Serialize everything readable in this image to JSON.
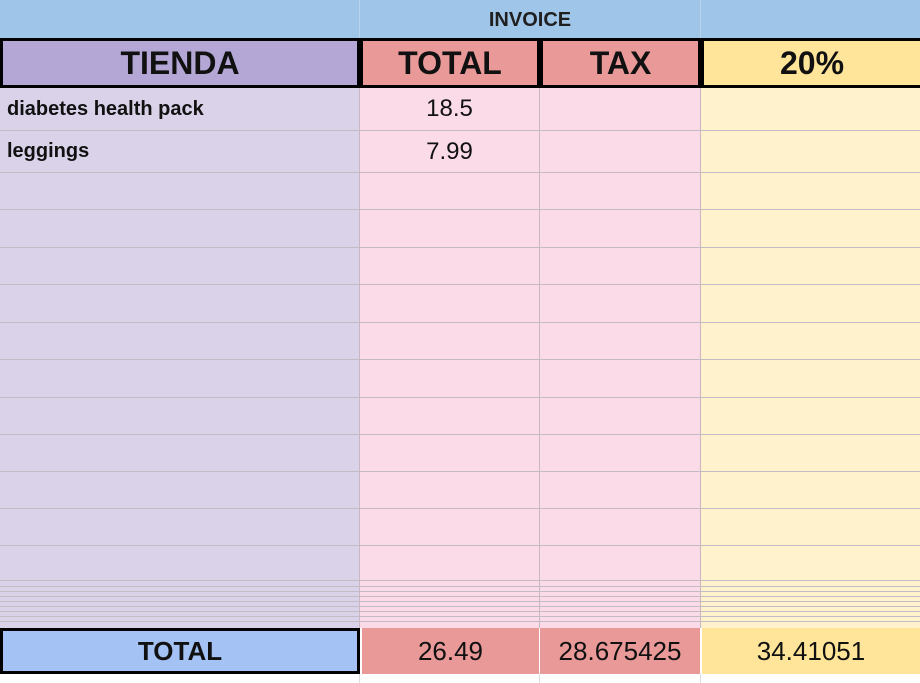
{
  "invoice": {
    "title": "INVOICE",
    "headers": {
      "store": "TIENDA",
      "total": "TOTAL",
      "tax": "TAX",
      "rate": "20%"
    },
    "items": [
      {
        "name": "diabetes health pack",
        "total": "18.5",
        "tax": "",
        "rate": ""
      },
      {
        "name": "leggings",
        "total": "7.99",
        "tax": "",
        "rate": ""
      }
    ],
    "totals": {
      "label": "TOTAL",
      "total": "26.49",
      "tax": "28.675425",
      "rate": "34.41051"
    }
  },
  "colors": {
    "title_bg": "#9fc5e8",
    "store_header": "#b4a7d6",
    "store_column": "#d9d2e9",
    "total_header": "#ea9999",
    "total_column": "#fadbe7",
    "rate_header": "#ffe599",
    "rate_column": "#fff2cc",
    "totals_label_bg": "#a4c2f4"
  }
}
